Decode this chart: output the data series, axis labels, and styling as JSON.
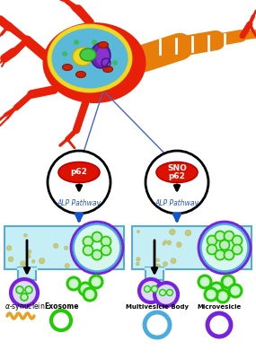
{
  "bg_color": "#ffffff",
  "neuron_body_color": "#e8200a",
  "neuron_axon_color": "#e87e0a",
  "nucleus_outer_color": "#f0d820",
  "cell_body_fill": "#5ab8d8",
  "p62_label": "p62",
  "sno_p62_label": "SNO\np62",
  "alp_label": "ALP Pathway",
  "cell_box_fill": "#c5eef5",
  "cell_box_edge": "#5aabcc",
  "mvb_color": "#4aabdd",
  "exosome_color": "#22cc00",
  "microvesicle_color": "#7722dd",
  "alphasynuclein_color": "#e8a020",
  "arrow_color": "#1155cc",
  "red_label_color": "#cc1100",
  "blue_label_color": "#2255cc",
  "dots_color": "#c8c050"
}
